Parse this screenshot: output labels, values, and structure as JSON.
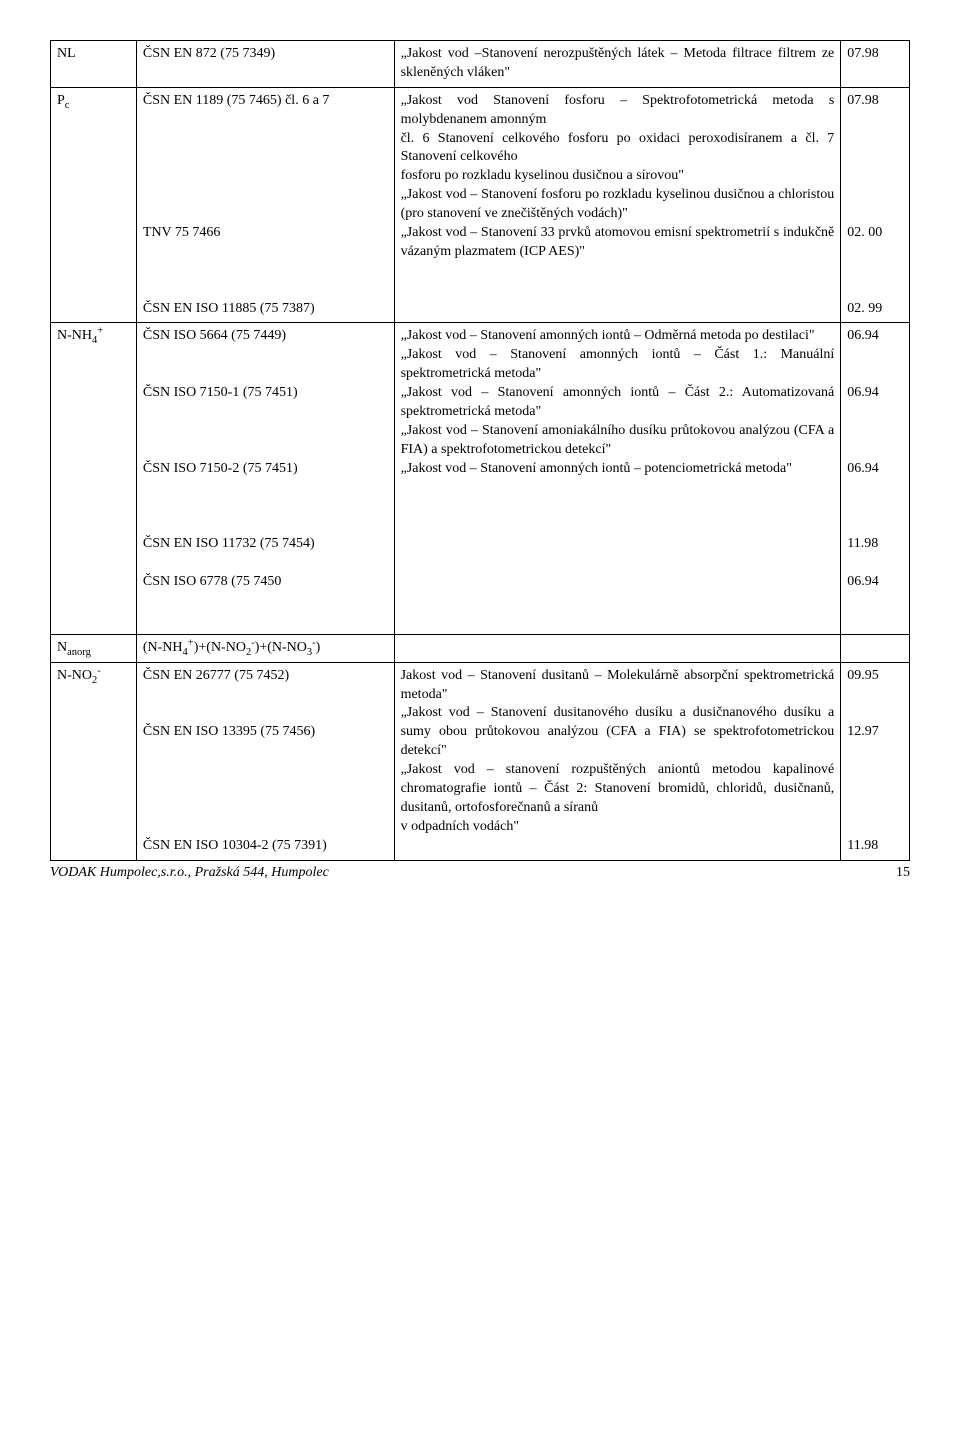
{
  "rows": [
    {
      "param": "NL",
      "std": "ČSN EN 872 (75 7349)",
      "desc": "„Jakost vod –Stanovení nerozpuštěných látek – Metoda filtrace filtrem ze skleněných vláken\"",
      "date": "07.98"
    },
    {
      "param_html": "P<sub>c</sub>",
      "std_multi": [
        "ČSN EN 1189 (75 7465) čl. 6 a 7",
        "",
        "",
        "",
        "",
        "",
        "",
        "TNV 75 7466",
        "",
        "",
        "",
        "ČSN EN ISO 11885 (75 7387)"
      ],
      "desc_multi": [
        {
          "t": "„Jakost vod Stanovení fosforu – Spektrofotometrická metoda s molybdenanem amonným",
          "d": "07.98"
        },
        {
          "t": "čl. 6 Stanovení celkového fosforu po oxidaci peroxodisíranem a čl. 7 Stanovení celkového",
          "d": ""
        },
        {
          "t": "fosforu po rozkladu kyselinou dusičnou a sírovou\"",
          "d": ""
        },
        {
          "t": "„Jakost vod – Stanovení fosforu po rozkladu kyselinou dusičnou a chloristou (pro stanovení ve znečištěných vodách)\"",
          "d": "02. 00"
        },
        {
          "t": " „Jakost vod – Stanovení 33 prvků atomovou emisní spektrometrií s indukčně vázaným plazmatem (ICP AES)\"",
          "d": "02. 99"
        }
      ]
    },
    {
      "param_html": "N-NH<sub>4</sub><sup>+</sup>",
      "std_multi": [
        "ČSN ISO 5664 (75 7449)",
        "",
        "",
        "ČSN ISO 7150-1 (75 7451)",
        "",
        "",
        "",
        "ČSN ISO 7150-2 (75 7451)",
        "",
        "",
        "",
        "ČSN EN ISO 11732 (75 7454)",
        "",
        "ČSN ISO 6778 (75 7450"
      ],
      "desc_multi2": [
        {
          "t": "„Jakost vod – Stanovení amonných iontů – Odměrná metoda po destilaci\"",
          "d": "06.94"
        },
        {
          "t": "„Jakost vod – Stanovení amonných iontů – Část 1.: Manuální spektrometrická metoda\"",
          "d": "06.94"
        },
        {
          "t": "„Jakost vod – Stanovení amonných iontů – Část 2.: Automatizovaná spektrometrická  metoda\"",
          "d": "06.94"
        },
        {
          "t": "„Jakost vod – Stanovení amoniakálního dusíku průtokovou analýzou (CFA a FIA) a spektrofotometrickou detekcí\"",
          "d": "11.98"
        },
        {
          "t": "„Jakost vod – Stanovení amonných iontů – potenciometrická metoda\"",
          "d": "06.94"
        }
      ]
    },
    {
      "param_html": "N<sub>anorg</sub>",
      "std_html": "(N-NH<sub>4</sub><sup>+</sup>)+(N-NO<sub>2</sub><sup>-</sup>)+(N-NO<sub>3</sub><sup>-</sup>)",
      "desc": "",
      "date": ""
    },
    {
      "param_html": "N-NO<sub>2</sub><sup>-</sup>",
      "std_multi": [
        "ČSN EN 26777 (75 7452)",
        "",
        "",
        "ČSN EN ISO 13395 (75 7456)",
        "",
        "",
        "",
        "",
        "",
        "ČSN EN ISO 10304-2 (75 7391)"
      ],
      "desc_multi3": [
        {
          "t": "Jakost vod – Stanovení dusitanů – Molekulárně absorpční spektrometrická metoda\"",
          "d": "09.95"
        },
        {
          "t": "„Jakost vod – Stanovení dusitanového dusíku a dusičnanového dusíku a sumy obou  průtokovou analýzou (CFA a FIA) se spektrofotometrickou detekcí\"",
          "d": "12.97"
        },
        {
          "t": "„Jakost vod – stanovení rozpuštěných aniontů metodou kapalinové chromatografie iontů – Část 2: Stanovení bromidů, chloridů, dusičnanů, dusitanů, ortofosforečnanů a síranů",
          "d": "11.98"
        },
        {
          "t": "v odpadních vodách\"",
          "d": ""
        }
      ]
    }
  ],
  "footer": "VODAK Humpolec,s.r.o., Pražská 544, Humpolec",
  "page": "15"
}
